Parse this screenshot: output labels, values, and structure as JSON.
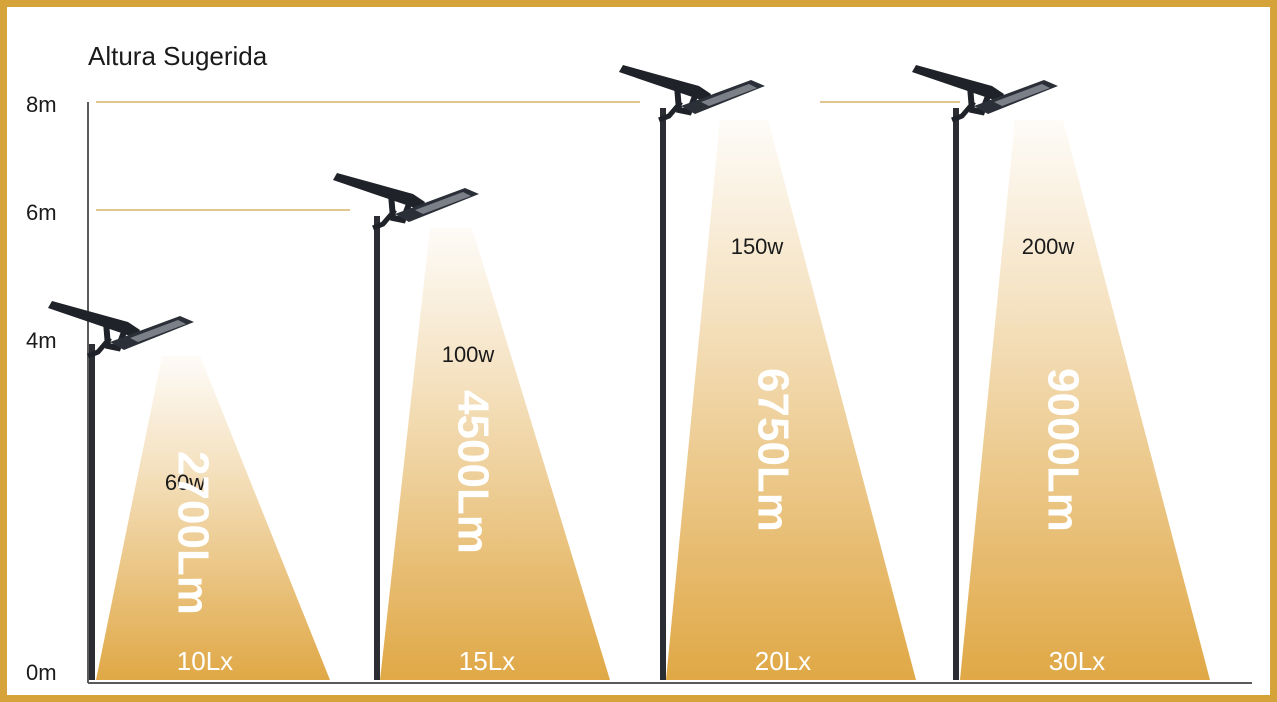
{
  "title": "Altura Sugerida",
  "y_axis": {
    "ticks": [
      {
        "label": "0m",
        "value": 0
      },
      {
        "label": "4m",
        "value": 4
      },
      {
        "label": "6m",
        "value": 6
      },
      {
        "label": "8m",
        "value": 8
      }
    ]
  },
  "lamps": [
    {
      "height_m": 4,
      "watts": "60w",
      "lumens": "2700Lm",
      "lux": "10Lx"
    },
    {
      "height_m": 6,
      "watts": "100w",
      "lumens": "4500Lm",
      "lux": "15Lx"
    },
    {
      "height_m": 8,
      "watts": "150w",
      "lumens": "6750Lm",
      "lux": "20Lx"
    },
    {
      "height_m": 8,
      "watts": "200w",
      "lumens": "9000Lm",
      "lux": "30Lx"
    }
  ],
  "colors": {
    "frame": "#d6a23a",
    "beam": "#e0a846",
    "guide": "#cfa452",
    "pole": "#2b2d33"
  }
}
